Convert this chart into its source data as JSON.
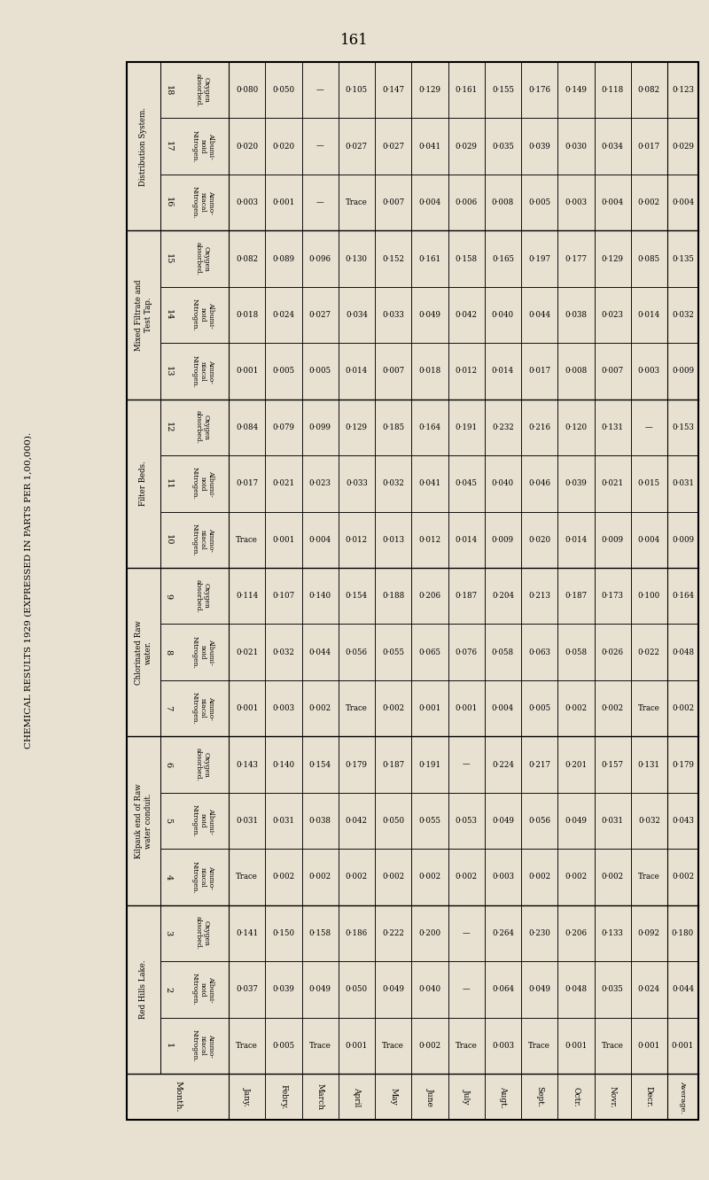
{
  "title": "CHEMICAL RESULTS 1929 (EXPRESSED IN PARTS PER 1,00,000).",
  "page_number": "161",
  "background_color": "#e8e0d0",
  "months": [
    "Jany.",
    "Febry.",
    "March",
    "April",
    "May",
    "June",
    "July",
    "Augt.",
    "Sept.",
    "Octr.",
    "Novr.",
    "Decr.",
    "Average."
  ],
  "sections": [
    {
      "name": "Red Hills Lake.",
      "cols": [
        {
          "num": "1",
          "label": "Ammo-\nniacal\nNitrogen."
        },
        {
          "num": "2",
          "label": "Albumi-\nnoid\nNitrogen."
        },
        {
          "num": "3",
          "label": "Oxygen\nabsorbed."
        }
      ],
      "data": {
        "1": [
          "Trace",
          "0·005",
          "Trace",
          "0·001",
          "Trace",
          "0·002",
          "Trace",
          "0·003",
          "Trace",
          "0·001",
          "Trace",
          "0·001",
          "0·001"
        ],
        "2": [
          "0·037",
          "0·039",
          "0·049",
          "0·050",
          "0·049",
          "0·040",
          "—",
          "0·064",
          "0·049",
          "0·048",
          "0·035",
          "0·024",
          "0·044"
        ],
        "3": [
          "0·141",
          "0·150",
          "0·158",
          "0·186",
          "0·222",
          "0·200",
          "—",
          "0·264",
          "0·230",
          "0·206",
          "0·133",
          "0·092",
          "0·180"
        ]
      }
    },
    {
      "name": "Kilpauk end of Raw\nwater conduit.",
      "cols": [
        {
          "num": "4",
          "label": "Ammo-\nniacal\nNitrogen."
        },
        {
          "num": "5",
          "label": "Albumi-\nnoid\nNitrogen."
        },
        {
          "num": "6",
          "label": "Oxygen\nabsorbed."
        }
      ],
      "data": {
        "4": [
          "Trace",
          "0·002",
          "0·002",
          "0·002",
          "0·002",
          "0·002",
          "0·002",
          "0·003",
          "0·002",
          "0·002",
          "0·002",
          "Trace",
          "0·002"
        ],
        "5": [
          "0·031",
          "0·031",
          "0·038",
          "0·042",
          "0·050",
          "0·055",
          "0·053",
          "0·049",
          "0·056",
          "0·049",
          "0·031",
          "0·032",
          "0·043"
        ],
        "6": [
          "0·143",
          "0·140",
          "0·154",
          "0·179",
          "0·187",
          "0·191",
          "—",
          "0·224",
          "0·217",
          "0·201",
          "0·157",
          "0·131",
          "0·179"
        ]
      }
    },
    {
      "name": "Chlorinated Raw\nwater.",
      "cols": [
        {
          "num": "7",
          "label": "Ammo-\nniacal\nNitrogen."
        },
        {
          "num": "8",
          "label": "Albumi-\nnoid\nNitrogen."
        },
        {
          "num": "9",
          "label": "Oxygen\nabsorbed."
        }
      ],
      "data": {
        "7": [
          "0·001",
          "0·003",
          "0·002",
          "Trace",
          "0·002",
          "0·001",
          "0·001",
          "0·004",
          "0·005",
          "0·002",
          "0·002",
          "Trace",
          "0·002"
        ],
        "8": [
          "0·021",
          "0·032",
          "0·044",
          "0·056",
          "0·055",
          "0·065",
          "0·076",
          "0·058",
          "0·063",
          "0·058",
          "0·026",
          "0·022",
          "0·048"
        ],
        "9": [
          "0·114",
          "0·107",
          "0·140",
          "0·154",
          "0·188",
          "0·206",
          "0·187",
          "0·204",
          "0·213",
          "0·187",
          "0·173",
          "0·100",
          "0·164"
        ]
      }
    },
    {
      "name": "Filter Beds.",
      "cols": [
        {
          "num": "10",
          "label": "Ammo-\nniacal\nNitrogen."
        },
        {
          "num": "11",
          "label": "Albumi-\nnoid\nNitrogen."
        },
        {
          "num": "12",
          "label": "Oxygen\nabsorbed."
        }
      ],
      "data": {
        "10": [
          "Trace",
          "0·001",
          "0·004",
          "0·012",
          "0·013",
          "0·012",
          "0·014",
          "0·009",
          "0·020",
          "0·014",
          "0·009",
          "0·004",
          "0·009"
        ],
        "11": [
          "0·017",
          "0·021",
          "0·023",
          "0·033",
          "0·032",
          "0·041",
          "0·045",
          "0·040",
          "0·046",
          "0·039",
          "0·021",
          "0·015",
          "0·031"
        ],
        "12": [
          "0·084",
          "0·079",
          "0·099",
          "0·129",
          "0·185",
          "0·164",
          "0·191",
          "0·232",
          "0·216",
          "0·120",
          "0·131",
          "—",
          "0·153"
        ]
      }
    },
    {
      "name": "Mixed Filtrate and\nTest Tap.",
      "cols": [
        {
          "num": "13",
          "label": "Ammo-\nniacal\nNitrogen."
        },
        {
          "num": "14",
          "label": "Albumi-\nnoid\nNitrogen."
        },
        {
          "num": "15",
          "label": "Oxygen\nabsorbed."
        }
      ],
      "data": {
        "13": [
          "0·001",
          "0·005",
          "0·005",
          "0·014",
          "0·007",
          "0·018",
          "0·012",
          "0·014",
          "0·017",
          "0·008",
          "0·007",
          "0·003",
          "0·009"
        ],
        "14": [
          "0·018",
          "0·024",
          "0·027",
          "0·034",
          "0·033",
          "0·049",
          "0·042",
          "0·040",
          "0·044",
          "0·038",
          "0·023",
          "0·014",
          "0·032"
        ],
        "15": [
          "0·082",
          "0·089",
          "0·096",
          "0·130",
          "0·152",
          "0·161",
          "0·158",
          "0·165",
          "0·197",
          "0·177",
          "0·129",
          "0·085",
          "0·135"
        ]
      }
    },
    {
      "name": "Distribution System.",
      "cols": [
        {
          "num": "16",
          "label": "Ammo-\nniacal\nNitrogen."
        },
        {
          "num": "17",
          "label": "Albumi-\nnoid\nNitrogen."
        },
        {
          "num": "18",
          "label": "Oxygen\nabsorbed."
        }
      ],
      "data": {
        "16": [
          "0·003",
          "0·001",
          "—",
          "Trace",
          "0·007",
          "0·004",
          "0·006",
          "0·008",
          "0·005",
          "0·003",
          "0·004",
          "0·002",
          "0·004"
        ],
        "17": [
          "0·020",
          "0·020",
          "—",
          "0·027",
          "0·027",
          "0·041",
          "0·029",
          "0·035",
          "0·039",
          "0·030",
          "0·034",
          "0·017",
          "0·029"
        ],
        "18": [
          "0·080",
          "0·050",
          "—",
          "0·105",
          "0·147",
          "0·129",
          "0·161",
          "0·155",
          "0·176",
          "0·149",
          "0·118",
          "0·082",
          "0·123"
        ]
      }
    }
  ]
}
